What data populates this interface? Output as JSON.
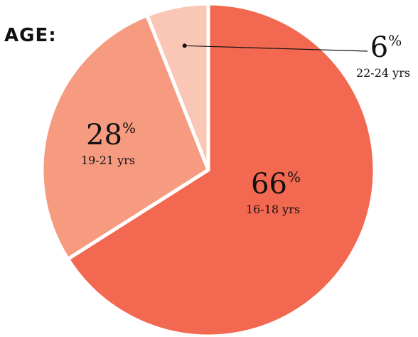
{
  "chart_data": {
    "type": "pie",
    "title": "AGE:",
    "categories": [
      "16-18 yrs",
      "19-21 yrs",
      "22-24 yrs"
    ],
    "values": [
      66,
      28,
      6
    ],
    "value_labels": [
      "66",
      "28",
      "6"
    ],
    "percent_symbol": "%",
    "colors": [
      "#F26850",
      "#F69A80",
      "#FAC7B6"
    ],
    "separator_color": "#ffffff",
    "start_angle_deg": 0,
    "direction": "clockwise"
  }
}
